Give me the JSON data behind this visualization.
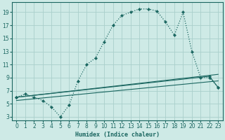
{
  "xlabel": "Humidex (Indice chaleur)",
  "bg_color": "#ceeae6",
  "grid_color": "#aacfcb",
  "line_color": "#1a6660",
  "xlim": [
    -0.5,
    23.5
  ],
  "ylim": [
    2.5,
    20.5
  ],
  "xticks": [
    0,
    1,
    2,
    3,
    4,
    5,
    6,
    7,
    8,
    9,
    10,
    11,
    12,
    13,
    14,
    15,
    16,
    17,
    18,
    19,
    20,
    21,
    22,
    23
  ],
  "yticks": [
    3,
    5,
    7,
    9,
    11,
    13,
    15,
    17,
    19
  ],
  "series1": [
    [
      0,
      6.0
    ],
    [
      1,
      6.5
    ],
    [
      2,
      6.0
    ],
    [
      3,
      5.5
    ],
    [
      4,
      4.5
    ],
    [
      5,
      3.0
    ],
    [
      6,
      4.8
    ],
    [
      7,
      8.5
    ],
    [
      8,
      11.0
    ],
    [
      9,
      12.0
    ],
    [
      10,
      14.5
    ],
    [
      11,
      17.0
    ],
    [
      12,
      18.5
    ],
    [
      13,
      19.0
    ],
    [
      14,
      19.5
    ],
    [
      15,
      19.5
    ],
    [
      16,
      19.2
    ],
    [
      17,
      17.5
    ],
    [
      18,
      15.5
    ],
    [
      19,
      19.0
    ],
    [
      20,
      13.0
    ],
    [
      21,
      9.0
    ],
    [
      22,
      9.0
    ],
    [
      23,
      7.5
    ]
  ],
  "line_straight1": [
    [
      0,
      6.0
    ],
    [
      23,
      9.5
    ]
  ],
  "line_straight2": [
    [
      0,
      6.0
    ],
    [
      22,
      9.2
    ],
    [
      23,
      7.5
    ]
  ],
  "line_straight3": [
    [
      0,
      5.5
    ],
    [
      23,
      8.5
    ]
  ]
}
